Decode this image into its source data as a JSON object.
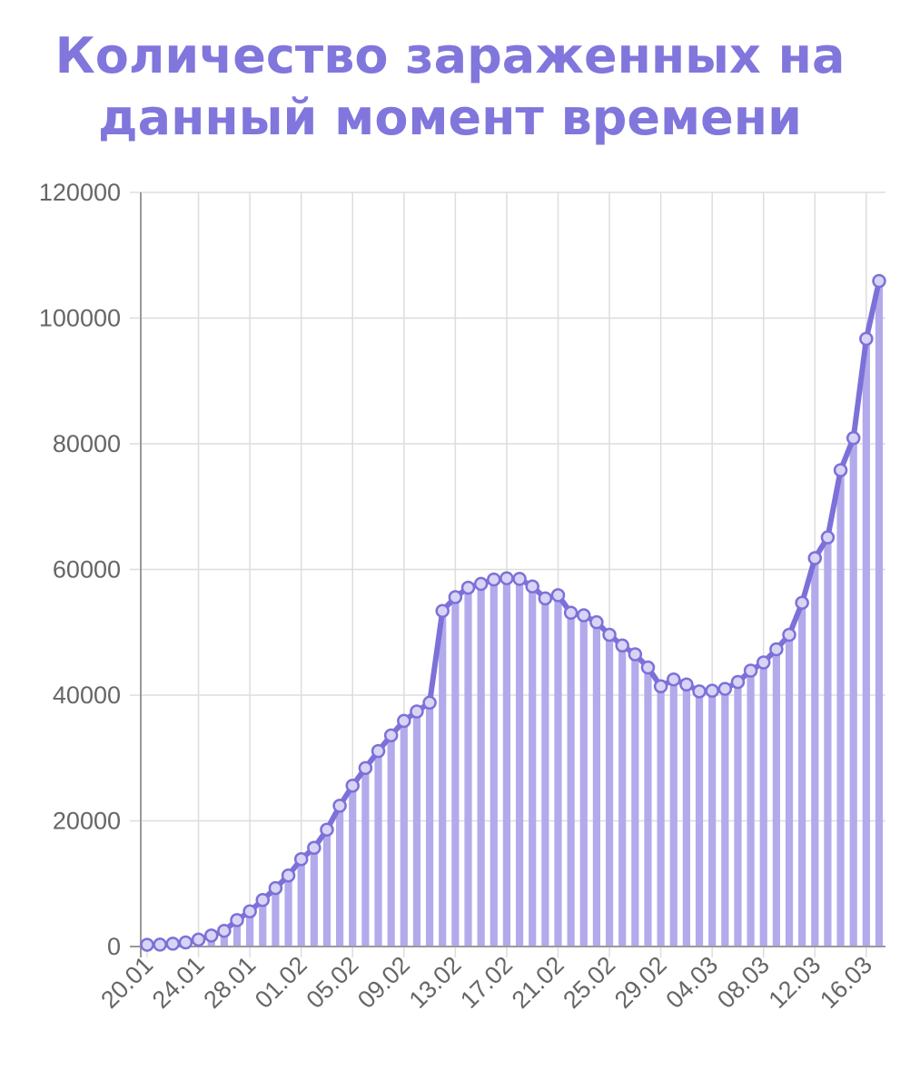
{
  "chart_data": {
    "type": "bar",
    "title_lines": [
      "Количество зараженных на",
      "данный момент времени"
    ],
    "ylim": [
      0,
      120000
    ],
    "y_ticks": [
      0,
      20000,
      40000,
      60000,
      80000,
      100000,
      120000
    ],
    "x_tick_labels": [
      "20.01",
      "24.01",
      "28.01",
      "01.02",
      "05.02",
      "09.02",
      "13.02",
      "17.02",
      "21.02",
      "25.02",
      "29.02",
      "04.03",
      "08.03",
      "12.03",
      "16.03"
    ],
    "x_tick_every": 4,
    "grid": true,
    "line_overlay": true,
    "series": [
      {
        "values": [
          278,
          300,
          450,
          650,
          1100,
          1750,
          2500,
          4200,
          5600,
          7400,
          9300,
          11300,
          13900,
          15700,
          18600,
          22400,
          25600,
          28400,
          31100,
          33600,
          35900,
          37400,
          38800,
          53400,
          55600,
          57100,
          57700,
          58400,
          58600,
          58500,
          57300,
          55400,
          55900,
          53100,
          52700,
          51600,
          49600,
          47900,
          46500,
          44400,
          41400,
          42500,
          41700,
          40600,
          40700,
          41000,
          42100,
          43900,
          45200,
          47300,
          49600,
          54700,
          61800,
          65100,
          75800,
          80900,
          96700,
          105900
        ]
      }
    ],
    "colors": {
      "title": "#8176dc",
      "line": "#7c71d8",
      "bar": "#b2aaeb",
      "grid": "#dddddd",
      "axis": "#999999",
      "tick_text": "#666666"
    }
  }
}
